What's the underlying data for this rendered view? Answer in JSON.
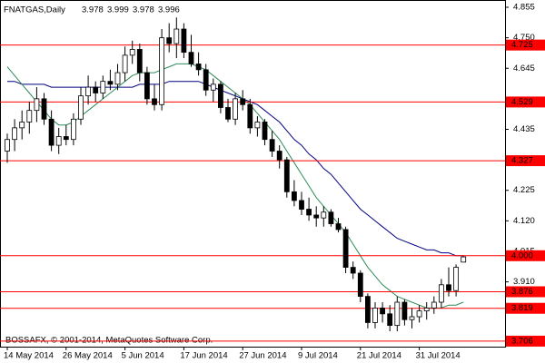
{
  "chart_data": {
    "type": "candlestick",
    "title": "FNATGAS,Daily",
    "footnote": "BOSSAFX, © 2001-2014, MetaQuotes Software Corp.",
    "categories": [
      "14 May 2014",
      null,
      null,
      null,
      null,
      null,
      null,
      null,
      "26 May 2014",
      null,
      null,
      null,
      null,
      null,
      null,
      null,
      "5 Jun 2014",
      null,
      null,
      null,
      null,
      null,
      null,
      null,
      "17 Jun 2014",
      null,
      null,
      null,
      null,
      null,
      null,
      null,
      "27 Jun 2014",
      null,
      null,
      null,
      null,
      null,
      null,
      null,
      "9 Jul 2014",
      null,
      null,
      null,
      null,
      null,
      null,
      null,
      "21 Jul 2014",
      null,
      null,
      null,
      null,
      null,
      null,
      null,
      "31 Jul 2014",
      null,
      null,
      null,
      null,
      null,
      null
    ],
    "open": [
      4.36,
      4.4,
      4.44,
      4.46,
      4.5,
      4.54,
      4.47,
      4.38,
      4.41,
      4.4,
      4.47,
      4.55,
      4.58,
      4.56,
      4.6,
      4.59,
      4.63,
      4.69,
      4.71,
      4.63,
      4.54,
      4.52,
      4.75,
      4.73,
      4.78,
      4.7,
      4.66,
      4.64,
      4.57,
      4.59,
      4.51,
      4.47,
      4.54,
      4.52,
      4.44,
      4.46,
      4.4,
      4.36,
      4.33,
      4.22,
      4.19,
      4.16,
      4.14,
      4.13,
      4.15,
      4.11,
      4.09,
      3.96,
      3.94,
      3.86,
      3.77,
      3.82,
      3.8,
      3.76,
      3.84,
      3.78,
      3.79,
      3.81,
      3.82,
      3.84,
      3.9,
      3.88,
      3.978
    ],
    "high": [
      4.42,
      4.47,
      4.5,
      4.53,
      4.58,
      4.56,
      4.5,
      4.44,
      4.45,
      4.49,
      4.58,
      4.62,
      4.6,
      4.62,
      4.64,
      4.66,
      4.72,
      4.74,
      4.73,
      4.65,
      4.59,
      4.78,
      4.8,
      4.82,
      4.8,
      4.76,
      4.7,
      4.66,
      4.61,
      4.6,
      4.54,
      4.56,
      4.57,
      4.54,
      4.48,
      4.47,
      4.43,
      4.38,
      4.34,
      4.26,
      4.22,
      4.2,
      4.17,
      4.17,
      4.16,
      4.13,
      4.1,
      3.98,
      3.95,
      3.87,
      3.84,
      3.84,
      3.83,
      3.86,
      3.85,
      3.82,
      3.83,
      3.84,
      3.86,
      3.92,
      3.96,
      3.97,
      3.999
    ],
    "low": [
      4.32,
      4.36,
      4.4,
      4.42,
      4.46,
      4.45,
      4.36,
      4.35,
      4.38,
      4.38,
      4.45,
      4.52,
      4.53,
      4.54,
      4.57,
      4.57,
      4.6,
      4.66,
      4.6,
      4.52,
      4.5,
      4.5,
      4.7,
      4.68,
      4.68,
      4.65,
      4.62,
      4.55,
      4.53,
      4.49,
      4.46,
      4.45,
      4.5,
      4.42,
      4.41,
      4.38,
      4.34,
      4.3,
      4.2,
      4.17,
      4.14,
      4.12,
      4.1,
      4.1,
      4.1,
      4.08,
      3.94,
      3.92,
      3.84,
      3.75,
      3.75,
      3.77,
      3.74,
      3.74,
      3.76,
      3.75,
      3.77,
      3.78,
      3.8,
      3.82,
      3.86,
      3.86,
      3.978
    ],
    "close": [
      4.4,
      4.44,
      4.46,
      4.5,
      4.54,
      4.47,
      4.38,
      4.41,
      4.4,
      4.47,
      4.55,
      4.58,
      4.56,
      4.6,
      4.59,
      4.63,
      4.69,
      4.71,
      4.63,
      4.54,
      4.52,
      4.75,
      4.73,
      4.78,
      4.7,
      4.66,
      4.64,
      4.57,
      4.59,
      4.51,
      4.47,
      4.54,
      4.52,
      4.44,
      4.46,
      4.4,
      4.36,
      4.33,
      4.22,
      4.19,
      4.16,
      4.14,
      4.13,
      4.15,
      4.11,
      4.09,
      3.96,
      3.94,
      3.86,
      3.77,
      3.82,
      3.8,
      3.76,
      3.84,
      3.78,
      3.79,
      3.81,
      3.82,
      3.84,
      3.9,
      3.88,
      3.96,
      3.996
    ],
    "series": [
      {
        "color": "#000080",
        "values": [
          4.6,
          4.6,
          4.59,
          4.59,
          4.59,
          4.59,
          4.58,
          4.58,
          4.58,
          4.58,
          4.58,
          4.58,
          4.58,
          4.58,
          4.58,
          4.58,
          4.58,
          4.58,
          4.59,
          4.59,
          4.59,
          4.59,
          4.6,
          4.6,
          4.6,
          4.6,
          4.6,
          4.59,
          4.58,
          4.57,
          4.56,
          4.55,
          4.54,
          4.53,
          4.52,
          4.5,
          4.48,
          4.46,
          4.43,
          4.4,
          4.38,
          4.35,
          4.33,
          4.3,
          4.28,
          4.25,
          4.22,
          4.19,
          4.16,
          4.14,
          4.12,
          4.1,
          4.08,
          4.06,
          4.05,
          4.04,
          4.03,
          4.02,
          4.02,
          4.01,
          4.01,
          4.0,
          4.0
        ]
      },
      {
        "color": "#2e8b57",
        "values": [
          4.65,
          4.62,
          4.59,
          4.56,
          4.53,
          4.5,
          4.47,
          4.45,
          4.45,
          4.46,
          4.48,
          4.5,
          4.52,
          4.54,
          4.56,
          4.58,
          4.6,
          4.62,
          4.63,
          4.63,
          4.63,
          4.64,
          4.65,
          4.66,
          4.66,
          4.66,
          4.65,
          4.64,
          4.62,
          4.6,
          4.58,
          4.56,
          4.54,
          4.52,
          4.49,
          4.46,
          4.43,
          4.4,
          4.36,
          4.32,
          4.28,
          4.24,
          4.2,
          4.17,
          4.14,
          4.11,
          4.08,
          4.04,
          4.0,
          3.96,
          3.93,
          3.9,
          3.88,
          3.86,
          3.85,
          3.84,
          3.83,
          3.82,
          3.82,
          3.82,
          3.83,
          3.83,
          3.84
        ]
      }
    ],
    "levels": [
      4.725,
      4.529,
      4.327,
      {
        "value": 4,
        "label": "4.000"
      },
      3.876,
      3.819,
      3.706
    ],
    "level_color": "#ff0000",
    "ylim": [
      3.687,
      4.88
    ],
    "yticks": [
      4.855,
      {
        "value": 4.75,
        "label": "4.750"
      },
      4.645,
      4.435,
      4.225,
      {
        "value": 4.12,
        "label": "4.120"
      },
      4.015,
      {
        "value": 3.91,
        "label": "3.910"
      }
    ]
  }
}
